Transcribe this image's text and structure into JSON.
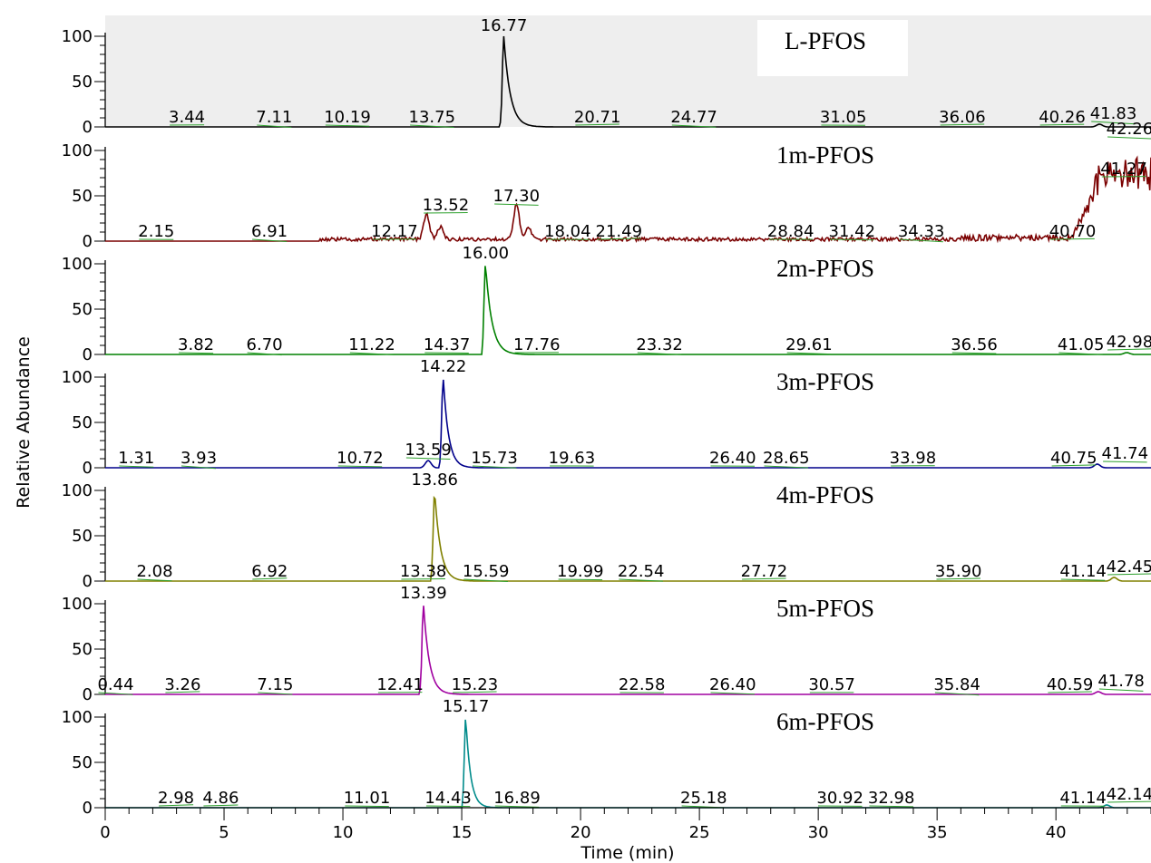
{
  "chart_data": {
    "type": "line",
    "xlabel": "Time (min)",
    "ylabel": "Relative Abundance",
    "xlim": [
      0,
      44
    ],
    "x_ticks": [
      "0",
      "5",
      "10",
      "15",
      "20",
      "25",
      "30",
      "35",
      "40"
    ],
    "y_ticks": [
      "0",
      "50",
      "100"
    ],
    "ylim": [
      0,
      100
    ],
    "legend": "none",
    "grid": false,
    "panels": [
      {
        "name": "L-PFOS",
        "color": "#000000",
        "background": "#eeeeee",
        "name_box": true,
        "main_peak": {
          "rt": 16.77,
          "height": 100,
          "width": 0.6
        },
        "minor_peaks": [
          {
            "rt": 41.83,
            "height": 3
          }
        ],
        "noise": 0,
        "labels": [
          "3.44",
          "7.11",
          "10.19",
          "13.75",
          "16.77",
          "20.71",
          "24.77",
          "31.05",
          "36.06",
          "40.26",
          "41.83"
        ]
      },
      {
        "name": "1m-PFOS",
        "color": "#7a0000",
        "background": "#ffffff",
        "name_box": false,
        "main_peak": null,
        "minor_peaks": [
          {
            "rt": 13.52,
            "height": 28
          },
          {
            "rt": 14.1,
            "height": 14
          },
          {
            "rt": 17.3,
            "height": 38
          },
          {
            "rt": 17.8,
            "height": 14
          }
        ],
        "late_rise": {
          "start": 40.7,
          "level": 70
        },
        "noise": 4,
        "labels": [
          "2.15",
          "6.91",
          "12.17",
          "13.52",
          "17.30",
          "18.04",
          "21.49",
          "28.84",
          "31.42",
          "34.33",
          "40.70",
          "41.27",
          "42.26"
        ]
      },
      {
        "name": "2m-PFOS",
        "color": "#008000",
        "background": "#ffffff",
        "name_box": false,
        "main_peak": {
          "rt": 16.0,
          "height": 100,
          "width": 0.6
        },
        "minor_peaks": [
          {
            "rt": 42.98,
            "height": 2
          }
        ],
        "noise": 0,
        "labels": [
          "3.82",
          "6.70",
          "11.22",
          "14.37",
          "16.00",
          "17.76",
          "23.32",
          "29.61",
          "36.56",
          "41.05",
          "42.98"
        ]
      },
      {
        "name": "3m-PFOS",
        "color": "#00008b",
        "background": "#ffffff",
        "name_box": false,
        "main_peak": {
          "rt": 14.22,
          "height": 100,
          "width": 0.5
        },
        "minor_peaks": [
          {
            "rt": 13.59,
            "height": 8
          },
          {
            "rt": 41.74,
            "height": 4
          }
        ],
        "noise": 0,
        "labels": [
          "1.31",
          "3.93",
          "10.72",
          "13.59",
          "14.22",
          "15.73",
          "19.63",
          "26.40",
          "28.65",
          "33.98",
          "40.75",
          "41.74"
        ]
      },
      {
        "name": "4m-PFOS",
        "color": "#808000",
        "background": "#ffffff",
        "name_box": false,
        "main_peak": {
          "rt": 13.86,
          "height": 100,
          "width": 0.55
        },
        "minor_peaks": [
          {
            "rt": 42.45,
            "height": 4
          }
        ],
        "noise": 0,
        "labels": [
          "2.08",
          "6.92",
          "13.38",
          "13.86",
          "15.59",
          "19.99",
          "22.54",
          "27.72",
          "35.90",
          "41.14",
          "42.45"
        ]
      },
      {
        "name": "5m-PFOS",
        "color": "#a000a0",
        "background": "#ffffff",
        "name_box": false,
        "main_peak": {
          "rt": 13.39,
          "height": 100,
          "width": 0.55
        },
        "minor_peaks": [
          {
            "rt": 41.78,
            "height": 3
          }
        ],
        "noise": 0,
        "labels": [
          "0.44",
          "3.26",
          "7.15",
          "12.41",
          "13.39",
          "15.23",
          "22.58",
          "26.40",
          "30.57",
          "35.84",
          "40.59",
          "41.78"
        ]
      },
      {
        "name": "6m-PFOS",
        "color": "#008b8b",
        "background": "#ffffff",
        "name_box": false,
        "main_peak": {
          "rt": 15.17,
          "height": 100,
          "width": 0.45
        },
        "minor_peaks": [
          {
            "rt": 42.14,
            "height": 3
          }
        ],
        "noise": 0,
        "labels": [
          "2.98",
          "4.86",
          "11.01",
          "14.43",
          "15.17",
          "16.89",
          "25.18",
          "30.92",
          "32.98",
          "41.14",
          "42.14"
        ]
      }
    ]
  }
}
